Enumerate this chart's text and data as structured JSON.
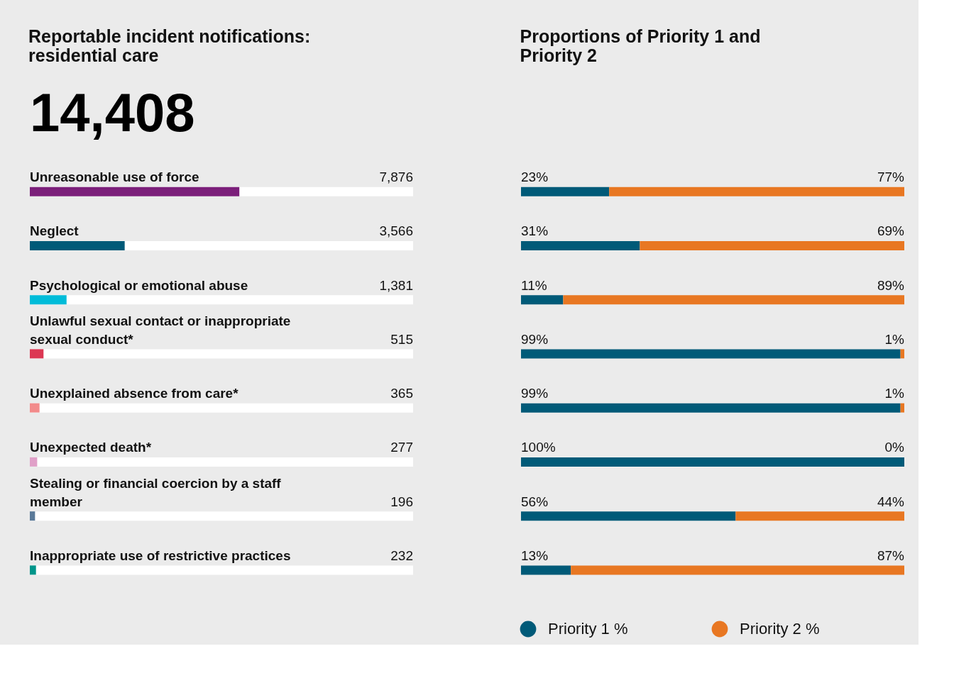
{
  "chart_data": [
    {
      "type": "bar",
      "orientation": "horizontal",
      "title": "Reportable incident notifications: residential care",
      "subtitle": "14,408",
      "categories": [
        "Unreasonable use of force",
        "Neglect",
        "Psychological or emotional abuse",
        "Unlawful sexual contact or inappropriate sexual conduct*",
        "Unexplained absence from care*",
        "Unexpected death*",
        "Stealing or financial coercion by a staff member",
        "Inappropriate use of restrictive practices"
      ],
      "values": [
        7876,
        3566,
        1381,
        515,
        365,
        277,
        196,
        232
      ],
      "colors": [
        "#7b1f7a",
        "#005a78",
        "#00bcd9",
        "#dc3753",
        "#f28b8b",
        "#e0a0c8",
        "#5b7a99",
        "#00958a"
      ],
      "value_labels": [
        "7,876",
        "3,566",
        "1,381",
        "515",
        "365",
        "277",
        "196",
        "232"
      ],
      "xlim": [
        0,
        14408
      ]
    },
    {
      "type": "bar",
      "orientation": "horizontal",
      "stacked": true,
      "title": "Proportions of Priority 1 and Priority 2",
      "categories": [
        null,
        null,
        null,
        null,
        null,
        null,
        null,
        null
      ],
      "xlim": [
        0,
        100
      ],
      "legend": "bottom",
      "tick_labels": false,
      "series": [
        {
          "name": "Priority 1 %",
          "color": "#005a78",
          "values": [
            23,
            31,
            11,
            99,
            99,
            100,
            56,
            13
          ],
          "value_labels": [
            "23%",
            "31%",
            "11%",
            "99%",
            "99%",
            "100%",
            "56%",
            "13%"
          ]
        },
        {
          "name": "Priority 2 %",
          "color": "#e87722",
          "values": [
            77,
            69,
            89,
            1,
            1,
            0,
            44,
            87
          ],
          "value_labels": [
            "77%",
            "69%",
            "89%",
            "1%",
            "1%",
            "0%",
            "44%",
            "87%"
          ]
        }
      ]
    }
  ]
}
